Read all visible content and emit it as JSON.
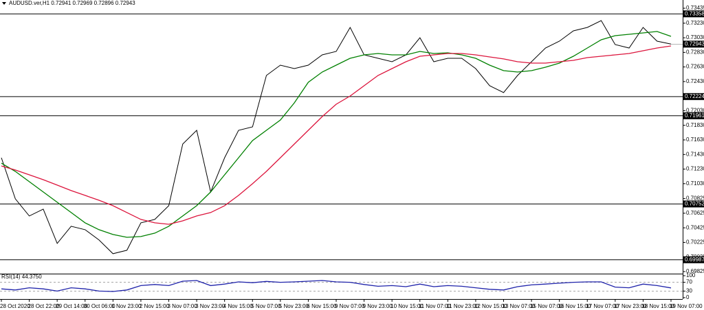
{
  "chart_data": [
    {
      "type": "line",
      "title": "AUDUSD.ver,H1  0.72941 0.72969 0.72896 0.72943",
      "x": [
        "28 Oct 2020",
        null,
        "28 Oct 22:00",
        null,
        "29 Oct 14:00",
        null,
        "30 Oct 06:00",
        null,
        "1 Nov 23:00",
        null,
        "2 Nov 15:00",
        null,
        "3 Nov 07:00",
        null,
        "3 Nov 23:00",
        null,
        "4 Nov 15:00",
        null,
        "5 Nov 07:00",
        null,
        "5 Nov 23:00",
        null,
        "6 Nov 15:00",
        null,
        "9 Nov 07:00",
        null,
        "9 Nov 23:00",
        null,
        "10 Nov 15:00",
        null,
        "11 Nov 07:00",
        null,
        "11 Nov 23:00",
        null,
        "12 Nov 15:00",
        null,
        "13 Nov 07:00",
        null,
        "15 Nov 07:00",
        null,
        "16 Nov 15:00",
        null,
        "17 Nov 07:00",
        null,
        "17 Nov 23:00",
        null,
        "18 Nov 15:00",
        null,
        "19 Nov 07:00"
      ],
      "series": [
        {
          "color": "#000000",
          "values": [
            0.71386,
            0.70822,
            0.70587,
            0.70681,
            0.70211,
            0.70446,
            0.70399,
            0.70258,
            0.7007,
            0.70117,
            0.70493,
            0.7054,
            0.70728,
            0.71574,
            0.71762,
            0.70916,
            0.71386,
            0.71762,
            0.71809,
            0.72514,
            0.72655,
            0.72608,
            0.72655,
            0.72796,
            0.72843,
            0.73172,
            0.72796,
            0.72749,
            0.72702,
            0.72796,
            0.73031,
            0.72702,
            0.72749,
            0.72749,
            0.72608,
            0.72373,
            0.72279,
            0.72514,
            0.72702,
            0.7289,
            0.72984,
            0.73125,
            0.73172,
            0.73266,
            0.72937,
            0.7289,
            0.73172,
            0.72984,
            0.72943
          ]
        },
        {
          "color": "#008000",
          "values": [
            0.71311,
            0.71198,
            0.71057,
            0.70916,
            0.70775,
            0.70634,
            0.70493,
            0.70399,
            0.70333,
            0.70295,
            0.70305,
            0.70352,
            0.70446,
            0.70587,
            0.70728,
            0.70916,
            0.71151,
            0.71386,
            0.71621,
            0.71762,
            0.71903,
            0.72138,
            0.7242,
            0.72561,
            0.72655,
            0.72749,
            0.72796,
            0.72815,
            0.72796,
            0.72796,
            0.72843,
            0.72815,
            0.72824,
            0.72796,
            0.72749,
            0.72655,
            0.7258,
            0.72561,
            0.7258,
            0.72627,
            0.72683,
            0.72777,
            0.7289,
            0.73003,
            0.73059,
            0.73078,
            0.73097,
            0.73116,
            0.7305
          ]
        },
        {
          "color": "#dc143c",
          "values": [
            0.71273,
            0.71217,
            0.71151,
            0.71085,
            0.7101,
            0.70935,
            0.70869,
            0.70803,
            0.70728,
            0.70634,
            0.7054,
            0.70493,
            0.70474,
            0.70521,
            0.70587,
            0.70634,
            0.70728,
            0.70869,
            0.71029,
            0.71198,
            0.71386,
            0.71574,
            0.71762,
            0.7195,
            0.72119,
            0.72232,
            0.72373,
            0.72514,
            0.72608,
            0.72702,
            0.72777,
            0.72796,
            0.72815,
            0.72815,
            0.72796,
            0.72768,
            0.7274,
            0.72702,
            0.72683,
            0.72683,
            0.72702,
            0.72721,
            0.72758,
            0.72777,
            0.72796,
            0.72815,
            0.72852,
            0.7289,
            0.72918
          ]
        }
      ],
      "ylim": [
        0.69806,
        0.73548
      ],
      "yticks": [
        0.73435,
        {
          "value": 0.7323,
          "label": "0.73230"
        },
        {
          "value": 0.7303,
          "label": "0.73030"
        },
        {
          "value": 0.7283,
          "label": "0.72830"
        },
        {
          "value": 0.7263,
          "label": "0.72630"
        },
        {
          "value": 0.7243,
          "label": "0.72430"
        },
        {
          "value": 0.7203,
          "label": "0.72030"
        },
        {
          "value": 0.7183,
          "label": "0.71830"
        },
        {
          "value": 0.7163,
          "label": "0.71630"
        },
        {
          "value": 0.7143,
          "label": "0.71430"
        },
        {
          "value": 0.7123,
          "label": "0.71230"
        },
        {
          "value": 0.7103,
          "label": "0.71030"
        },
        0.70825,
        0.70625,
        0.70425,
        0.70225,
        0.70025,
        0.69825
      ],
      "levels": [
        0.73358,
        0.72224,
        0.71961,
        0.70752,
        0.69987
      ],
      "last_price": 0.72943
    },
    {
      "type": "line",
      "title": "RSI(14) 44.3750",
      "series": [
        {
          "color": "#1e22aa",
          "values": [
            40,
            35,
            45,
            40,
            30,
            45,
            40,
            30,
            28,
            35,
            55,
            60,
            55,
            75,
            78,
            55,
            62,
            72,
            68,
            74,
            70,
            72,
            75,
            78,
            72,
            70,
            60,
            52,
            55,
            50,
            62,
            50,
            55,
            52,
            45,
            38,
            35,
            50,
            58,
            62,
            66,
            70,
            72,
            72,
            48,
            45,
            62,
            55,
            44.375
          ]
        }
      ],
      "ylim": [
        0,
        100
      ],
      "yticks": [
        100,
        70,
        30,
        0
      ],
      "dashed_grid": [
        70,
        30
      ]
    }
  ]
}
